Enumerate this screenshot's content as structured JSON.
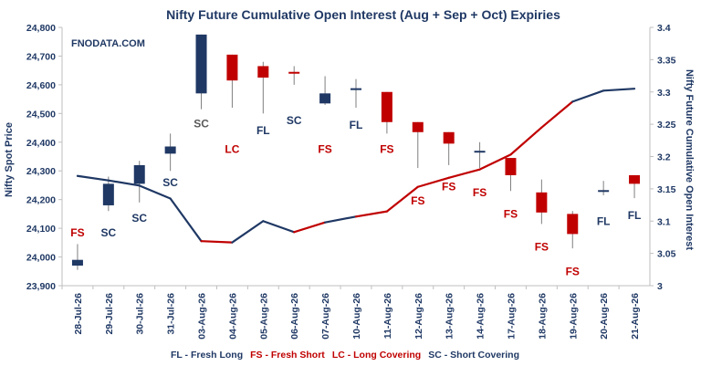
{
  "chart_data": {
    "type": "candlestick+line",
    "title": "Nifty Future Cumulative Open Interest (Aug + Sep + Oct) Expiries",
    "watermark": "FNODATA.COM",
    "ylabel_left": "Nifty Spot Price",
    "ylabel_right": "Nifty Future Cumulative Open Interest",
    "ylim_left": [
      23900,
      24800
    ],
    "yticks_left": [
      "23,900",
      "24,000",
      "24,100",
      "24,200",
      "24,300",
      "24,400",
      "24,500",
      "24,600",
      "24,700",
      "24,800"
    ],
    "ylim_right": [
      3,
      3.4
    ],
    "yticks_right": [
      "3",
      "3.05",
      "3.1",
      "3.15",
      "3.2",
      "3.25",
      "3.3",
      "3.35",
      "3.4"
    ],
    "categories": [
      "28-Jul-26",
      "29-Jul-26",
      "30-Jul-26",
      "31-Jul-26",
      "03-Aug-26",
      "04-Aug-26",
      "05-Aug-26",
      "06-Aug-26",
      "07-Aug-26",
      "10-Aug-26",
      "11-Aug-26",
      "12-Aug-26",
      "13-Aug-26",
      "14-Aug-26",
      "17-Aug-26",
      "18-Aug-26",
      "19-Aug-26",
      "20-Aug-26",
      "21-Aug-26"
    ],
    "candles": [
      {
        "open": 23970,
        "close": 23990,
        "high": 24045,
        "low": 23955,
        "color": "#1f3864",
        "label": "FS",
        "label_color": "#c00000",
        "label_value": 24085
      },
      {
        "open": 24180,
        "close": 24255,
        "high": 24280,
        "low": 24160,
        "color": "#1f3864",
        "label": "SC",
        "label_color": "#1f3864",
        "label_value": 24085
      },
      {
        "open": 24255,
        "close": 24320,
        "high": 24335,
        "low": 24190,
        "color": "#1f3864",
        "label": "SC",
        "label_color": "#1f3864",
        "label_value": 24135
      },
      {
        "open": 24360,
        "close": 24385,
        "high": 24430,
        "low": 24300,
        "color": "#1f3864",
        "label": "SC",
        "label_color": "#1f3864",
        "label_value": 24260
      },
      {
        "open": 24570,
        "close": 24775,
        "high": 24775,
        "low": 24515,
        "color": "#1f3864",
        "label": "SC",
        "label_color": "#595959",
        "label_value": 24465
      },
      {
        "open": 24705,
        "close": 24615,
        "high": 24705,
        "low": 24520,
        "color": "#c00000",
        "label": "LC",
        "label_color": "#c00000",
        "label_value": 24375
      },
      {
        "open": 24665,
        "close": 24625,
        "high": 24680,
        "low": 24500,
        "color": "#c00000",
        "label": "FL",
        "label_color": "#1f3864",
        "label_value": 24440
      },
      {
        "open": 24645,
        "close": 24640,
        "high": 24665,
        "low": 24600,
        "color": "#c00000",
        "label": "SC",
        "label_color": "#1f3864",
        "label_value": 24475
      },
      {
        "open": 24535,
        "close": 24570,
        "high": 24630,
        "low": 24530,
        "color": "#1f3864",
        "label": "FS",
        "label_color": "#c00000",
        "label_value": 24375
      },
      {
        "open": 24583,
        "close": 24588,
        "high": 24620,
        "low": 24520,
        "color": "#1f3864",
        "label": "FL",
        "label_color": "#1f3864",
        "label_value": 24460
      },
      {
        "open": 24575,
        "close": 24470,
        "high": 24575,
        "low": 24430,
        "color": "#c00000",
        "label": "FS",
        "label_color": "#c00000",
        "label_value": 24375
      },
      {
        "open": 24470,
        "close": 24435,
        "high": 24470,
        "low": 24310,
        "color": "#c00000",
        "label": "FS",
        "label_color": "#c00000",
        "label_value": 24195
      },
      {
        "open": 24435,
        "close": 24395,
        "high": 24435,
        "low": 24320,
        "color": "#c00000",
        "label": "FS",
        "label_color": "#c00000",
        "label_value": 24245
      },
      {
        "open": 24365,
        "close": 24370,
        "high": 24400,
        "low": 24310,
        "color": "#1f3864",
        "label": "FS",
        "label_color": "#c00000",
        "label_value": 24225
      },
      {
        "open": 24345,
        "close": 24285,
        "high": 24345,
        "low": 24230,
        "color": "#c00000",
        "label": "FS",
        "label_color": "#c00000",
        "label_value": 24150
      },
      {
        "open": 24225,
        "close": 24155,
        "high": 24270,
        "low": 24115,
        "color": "#c00000",
        "label": "FS",
        "label_color": "#c00000",
        "label_value": 24035
      },
      {
        "open": 24150,
        "close": 24080,
        "high": 24160,
        "low": 24030,
        "color": "#c00000",
        "label": "FS",
        "label_color": "#c00000",
        "label_value": 23950
      },
      {
        "open": 24228,
        "close": 24233,
        "high": 24265,
        "low": 24215,
        "color": "#1f3864",
        "label": "FL",
        "label_color": "#1f3864",
        "label_value": 24125
      },
      {
        "open": 24285,
        "close": 24255,
        "high": 24285,
        "low": 24205,
        "color": "#c00000",
        "label": "FL",
        "label_color": "#1f3864",
        "label_value": 24145
      }
    ],
    "oi_line": {
      "values": [
        3.17,
        3.163,
        3.155,
        3.135,
        3.069,
        3.067,
        3.1,
        3.083,
        3.098,
        3.107,
        3.115,
        3.153,
        3.167,
        3.18,
        3.203,
        3.245,
        3.285,
        3.302,
        3.305
      ],
      "segment_colors": [
        "#1f3864",
        "#1f3864",
        "#1f3864",
        "#1f3864",
        "#c00000",
        "#1f3864",
        "#1f3864",
        "#c00000",
        "#1f3864",
        "#c00000",
        "#c00000",
        "#c00000",
        "#c00000",
        "#c00000",
        "#c00000",
        "#c00000",
        "#1f3864",
        "#1f3864"
      ]
    },
    "legend": [
      {
        "code": "FL",
        "text": "FL - Fresh Long",
        "color": "#1f3864"
      },
      {
        "code": "FS",
        "text": "FS - Fresh Short",
        "color": "#c00000"
      },
      {
        "code": "LC",
        "text": "LC - Long Covering",
        "color": "#c00000"
      },
      {
        "code": "SC",
        "text": "SC - Short Covering",
        "color": "#1f3864"
      }
    ],
    "grid": false,
    "colors": {
      "navy": "#1f3864",
      "red": "#c00000",
      "axis": "#bfbfbf"
    }
  }
}
